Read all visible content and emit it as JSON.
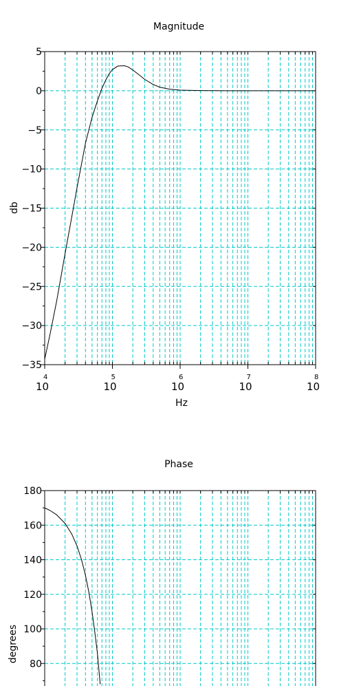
{
  "chart_data": [
    {
      "type": "line",
      "title": "Magnitude",
      "xlabel": "Hz",
      "ylabel": "db",
      "x_scale": "log",
      "xlim": [
        10000,
        100000000
      ],
      "ylim": [
        -35,
        5
      ],
      "grid": true,
      "grid_color": "#00c8c8",
      "line_color": "#000000",
      "x_ticks": [
        {
          "base": "10",
          "exp": "4"
        },
        {
          "base": "10",
          "exp": "5"
        },
        {
          "base": "10",
          "exp": "6"
        },
        {
          "base": "10",
          "exp": "7"
        },
        {
          "base": "10",
          "exp": "8"
        }
      ],
      "y_ticks": [
        "5",
        "0",
        "−5",
        "−10",
        "−15",
        "−20",
        "−25",
        "−30",
        "−35"
      ],
      "series": [
        {
          "x": [
            10000,
            12000,
            15000,
            20000,
            25000,
            30000,
            40000,
            50000,
            60000,
            70000,
            80000,
            90000,
            100000,
            120000,
            150000,
            170000,
            200000,
            250000,
            300000,
            400000,
            500000,
            700000,
            1000000,
            2000000,
            5000000,
            10000000,
            100000000
          ],
          "y": [
            -34.3,
            -31.1,
            -26.9,
            -20.8,
            -16.2,
            -12.4,
            -6.7,
            -3.4,
            -1.3,
            0.3,
            1.4,
            2.2,
            2.7,
            3.15,
            3.2,
            3.05,
            2.65,
            2.0,
            1.45,
            0.8,
            0.45,
            0.2,
            0.08,
            0.02,
            0.0,
            0.0,
            0.0
          ]
        }
      ]
    },
    {
      "type": "line",
      "title": "Phase",
      "xlabel": "",
      "ylabel": "degrees",
      "x_scale": "log",
      "xlim": [
        10000,
        100000000
      ],
      "ylim": [
        66,
        180
      ],
      "grid": true,
      "grid_color": "#00c8c8",
      "line_color": "#000000",
      "y_ticks": [
        "180",
        "160",
        "140",
        "120",
        "100",
        "80"
      ],
      "series": [
        {
          "x": [
            10000,
            12000,
            15000,
            20000,
            25000,
            30000,
            35000,
            40000,
            45000,
            50000,
            55000,
            60000,
            66000
          ],
          "y": [
            170,
            168.5,
            166,
            161,
            155,
            148,
            140,
            131,
            121,
            110,
            98,
            86,
            68
          ]
        }
      ]
    }
  ]
}
